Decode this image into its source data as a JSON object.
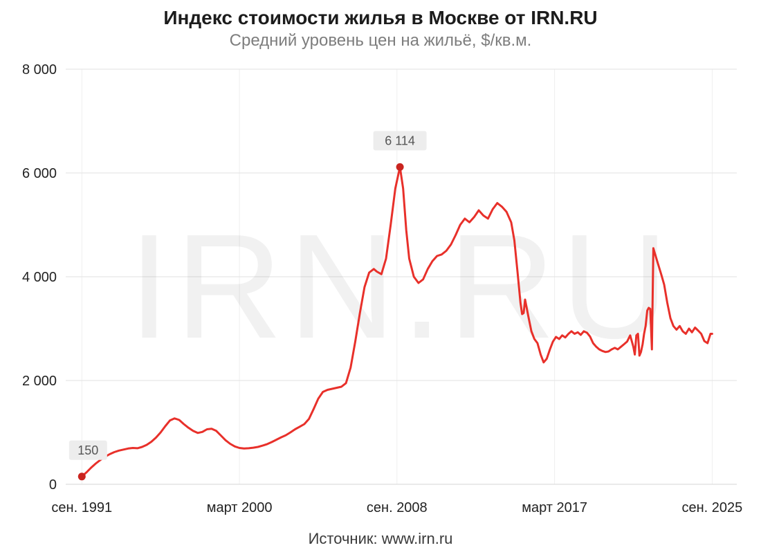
{
  "title": "Индекс стоимости жилья в Москве от IRN.RU",
  "subtitle": "Средний уровень цен на жильё, $/кв.м.",
  "source": "Источник: www.irn.ru",
  "watermark": "IRN.RU",
  "colors": {
    "line": "#e8302a",
    "dot": "#c9241f",
    "grid": "#e2e2e2",
    "grid_v": "#efefef",
    "label_bg": "#ededed",
    "label_text": "#565656",
    "subtitle": "#7d7d7d",
    "axis_text": "#222222"
  },
  "chart_data": {
    "type": "line",
    "title": "Индекс стоимости жилья в Москве от IRN.RU",
    "subtitle": "Средний уровень цен на жильё, $/кв.м.",
    "xlabel": "",
    "ylabel": "$/кв.м.",
    "xlim": [
      1990.8,
      2027.0
    ],
    "ylim": [
      0,
      8000
    ],
    "grid": true,
    "x_ticks": [
      {
        "x": 1991.67,
        "label": "сен. 1991"
      },
      {
        "x": 2000.17,
        "label": "март 2000"
      },
      {
        "x": 2008.67,
        "label": "сен. 2008"
      },
      {
        "x": 2017.17,
        "label": "март 2017"
      },
      {
        "x": 2025.67,
        "label": "сен. 2025"
      }
    ],
    "y_ticks": [
      {
        "v": 0,
        "label": "0"
      },
      {
        "v": 2000,
        "label": "2 000"
      },
      {
        "v": 4000,
        "label": "4 000"
      },
      {
        "v": 6000,
        "label": "6 000"
      },
      {
        "v": 8000,
        "label": "8 000"
      }
    ],
    "annotations": [
      {
        "x": 1991.67,
        "y": 150,
        "label": "150",
        "dx": 9
      },
      {
        "x": 2008.83,
        "y": 6114,
        "label": "6 114",
        "dx": 0
      }
    ],
    "points": [
      [
        1991.67,
        150
      ],
      [
        1991.92,
        230
      ],
      [
        1992.17,
        320
      ],
      [
        1992.42,
        400
      ],
      [
        1992.67,
        470
      ],
      [
        1992.92,
        530
      ],
      [
        1993.17,
        580
      ],
      [
        1993.42,
        620
      ],
      [
        1993.67,
        650
      ],
      [
        1993.92,
        670
      ],
      [
        1994.17,
        690
      ],
      [
        1994.42,
        700
      ],
      [
        1994.67,
        695
      ],
      [
        1994.92,
        720
      ],
      [
        1995.17,
        760
      ],
      [
        1995.42,
        820
      ],
      [
        1995.67,
        900
      ],
      [
        1995.92,
        1000
      ],
      [
        1996.17,
        1120
      ],
      [
        1996.42,
        1230
      ],
      [
        1996.67,
        1270
      ],
      [
        1996.92,
        1240
      ],
      [
        1997.17,
        1160
      ],
      [
        1997.42,
        1090
      ],
      [
        1997.67,
        1030
      ],
      [
        1997.92,
        990
      ],
      [
        1998.17,
        1010
      ],
      [
        1998.42,
        1060
      ],
      [
        1998.67,
        1070
      ],
      [
        1998.92,
        1030
      ],
      [
        1999.17,
        940
      ],
      [
        1999.42,
        850
      ],
      [
        1999.67,
        780
      ],
      [
        1999.92,
        730
      ],
      [
        2000.17,
        700
      ],
      [
        2000.42,
        690
      ],
      [
        2000.67,
        695
      ],
      [
        2000.92,
        705
      ],
      [
        2001.17,
        720
      ],
      [
        2001.42,
        745
      ],
      [
        2001.67,
        775
      ],
      [
        2001.92,
        815
      ],
      [
        2002.17,
        860
      ],
      [
        2002.42,
        905
      ],
      [
        2002.67,
        945
      ],
      [
        2002.92,
        1000
      ],
      [
        2003.17,
        1060
      ],
      [
        2003.42,
        1110
      ],
      [
        2003.67,
        1160
      ],
      [
        2003.92,
        1260
      ],
      [
        2004.17,
        1450
      ],
      [
        2004.42,
        1650
      ],
      [
        2004.67,
        1780
      ],
      [
        2004.92,
        1820
      ],
      [
        2005.17,
        1840
      ],
      [
        2005.42,
        1860
      ],
      [
        2005.67,
        1880
      ],
      [
        2005.92,
        1950
      ],
      [
        2006.17,
        2250
      ],
      [
        2006.42,
        2750
      ],
      [
        2006.67,
        3300
      ],
      [
        2006.92,
        3800
      ],
      [
        2007.17,
        4080
      ],
      [
        2007.42,
        4150
      ],
      [
        2007.58,
        4100
      ],
      [
        2007.83,
        4050
      ],
      [
        2008.08,
        4350
      ],
      [
        2008.33,
        5000
      ],
      [
        2008.58,
        5700
      ],
      [
        2008.83,
        6114
      ],
      [
        2009.0,
        5700
      ],
      [
        2009.17,
        4900
      ],
      [
        2009.33,
        4350
      ],
      [
        2009.58,
        4000
      ],
      [
        2009.83,
        3880
      ],
      [
        2010.08,
        3950
      ],
      [
        2010.33,
        4150
      ],
      [
        2010.58,
        4300
      ],
      [
        2010.83,
        4400
      ],
      [
        2011.08,
        4430
      ],
      [
        2011.33,
        4500
      ],
      [
        2011.58,
        4620
      ],
      [
        2011.83,
        4800
      ],
      [
        2012.08,
        5000
      ],
      [
        2012.33,
        5120
      ],
      [
        2012.58,
        5050
      ],
      [
        2012.83,
        5150
      ],
      [
        2013.08,
        5280
      ],
      [
        2013.33,
        5180
      ],
      [
        2013.58,
        5120
      ],
      [
        2013.83,
        5300
      ],
      [
        2014.08,
        5420
      ],
      [
        2014.33,
        5350
      ],
      [
        2014.58,
        5250
      ],
      [
        2014.83,
        5050
      ],
      [
        2015.0,
        4700
      ],
      [
        2015.17,
        4100
      ],
      [
        2015.33,
        3500
      ],
      [
        2015.42,
        3280
      ],
      [
        2015.5,
        3300
      ],
      [
        2015.58,
        3560
      ],
      [
        2015.75,
        3250
      ],
      [
        2015.92,
        2950
      ],
      [
        2016.08,
        2800
      ],
      [
        2016.25,
        2720
      ],
      [
        2016.42,
        2500
      ],
      [
        2016.58,
        2350
      ],
      [
        2016.75,
        2420
      ],
      [
        2016.92,
        2600
      ],
      [
        2017.08,
        2750
      ],
      [
        2017.25,
        2840
      ],
      [
        2017.42,
        2800
      ],
      [
        2017.58,
        2870
      ],
      [
        2017.75,
        2830
      ],
      [
        2017.92,
        2900
      ],
      [
        2018.08,
        2950
      ],
      [
        2018.25,
        2900
      ],
      [
        2018.42,
        2930
      ],
      [
        2018.58,
        2880
      ],
      [
        2018.75,
        2950
      ],
      [
        2018.92,
        2920
      ],
      [
        2019.08,
        2850
      ],
      [
        2019.25,
        2720
      ],
      [
        2019.42,
        2650
      ],
      [
        2019.58,
        2600
      ],
      [
        2019.75,
        2570
      ],
      [
        2019.92,
        2550
      ],
      [
        2020.08,
        2560
      ],
      [
        2020.25,
        2600
      ],
      [
        2020.42,
        2630
      ],
      [
        2020.58,
        2600
      ],
      [
        2020.75,
        2650
      ],
      [
        2020.92,
        2700
      ],
      [
        2021.08,
        2750
      ],
      [
        2021.25,
        2870
      ],
      [
        2021.42,
        2650
      ],
      [
        2021.5,
        2500
      ],
      [
        2021.58,
        2870
      ],
      [
        2021.67,
        2900
      ],
      [
        2021.75,
        2480
      ],
      [
        2021.83,
        2550
      ],
      [
        2021.92,
        2700
      ],
      [
        2022.0,
        2900
      ],
      [
        2022.08,
        3050
      ],
      [
        2022.17,
        3350
      ],
      [
        2022.25,
        3400
      ],
      [
        2022.33,
        3380
      ],
      [
        2022.42,
        2600
      ],
      [
        2022.5,
        4550
      ],
      [
        2022.58,
        4450
      ],
      [
        2022.75,
        4250
      ],
      [
        2022.92,
        4050
      ],
      [
        2023.08,
        3850
      ],
      [
        2023.25,
        3500
      ],
      [
        2023.42,
        3200
      ],
      [
        2023.58,
        3050
      ],
      [
        2023.75,
        2980
      ],
      [
        2023.92,
        3050
      ],
      [
        2024.08,
        2950
      ],
      [
        2024.25,
        2900
      ],
      [
        2024.42,
        3000
      ],
      [
        2024.58,
        2930
      ],
      [
        2024.75,
        3020
      ],
      [
        2024.92,
        2960
      ],
      [
        2025.08,
        2900
      ],
      [
        2025.25,
        2760
      ],
      [
        2025.42,
        2720
      ],
      [
        2025.58,
        2900
      ],
      [
        2025.67,
        2900
      ]
    ]
  }
}
